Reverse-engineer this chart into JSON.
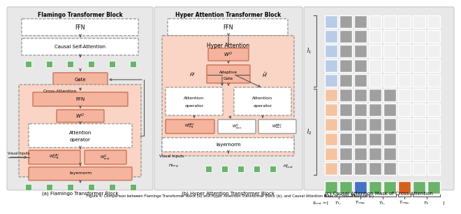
{
  "panel_a_title": "Flamingo Transformer Block",
  "panel_b_title": "Hyper Attention Transformer Block",
  "panel_c_caption": "(c) Causal Attention Mask of Cross-Attention",
  "panel_a_caption": "(a) Flamingo Transformer Block",
  "panel_b_caption": "(b) Hyper Attention Transformer Block",
  "caption_full": "Figure 4: Comparison between Flamingo Transformer Block (a) and Hyper Attention Transformer Block (b), and Causal Attention Mask of Cross-Attention (c)",
  "bg_gray": "#e8e8e8",
  "salmon_fill": "#f4b49e",
  "light_salmon": "#fad4c4",
  "white": "#ffffff",
  "green": "#6ab46a",
  "blue_token": "#4472c4",
  "orange_token": "#d46020",
  "gray_cell": "#a0a0a0",
  "light_blue_cell": "#b8cce8",
  "light_orange_cell": "#f4c4a0",
  "white_cell": "#f0f0f0",
  "grid_n_rows": 11,
  "grid_n_cols": 8,
  "grid_i1_rows": 5,
  "grid_i2_rows": 6,
  "token_row": [
    "green",
    "green",
    "blue",
    "green",
    "green",
    "orange",
    "green",
    "green"
  ]
}
